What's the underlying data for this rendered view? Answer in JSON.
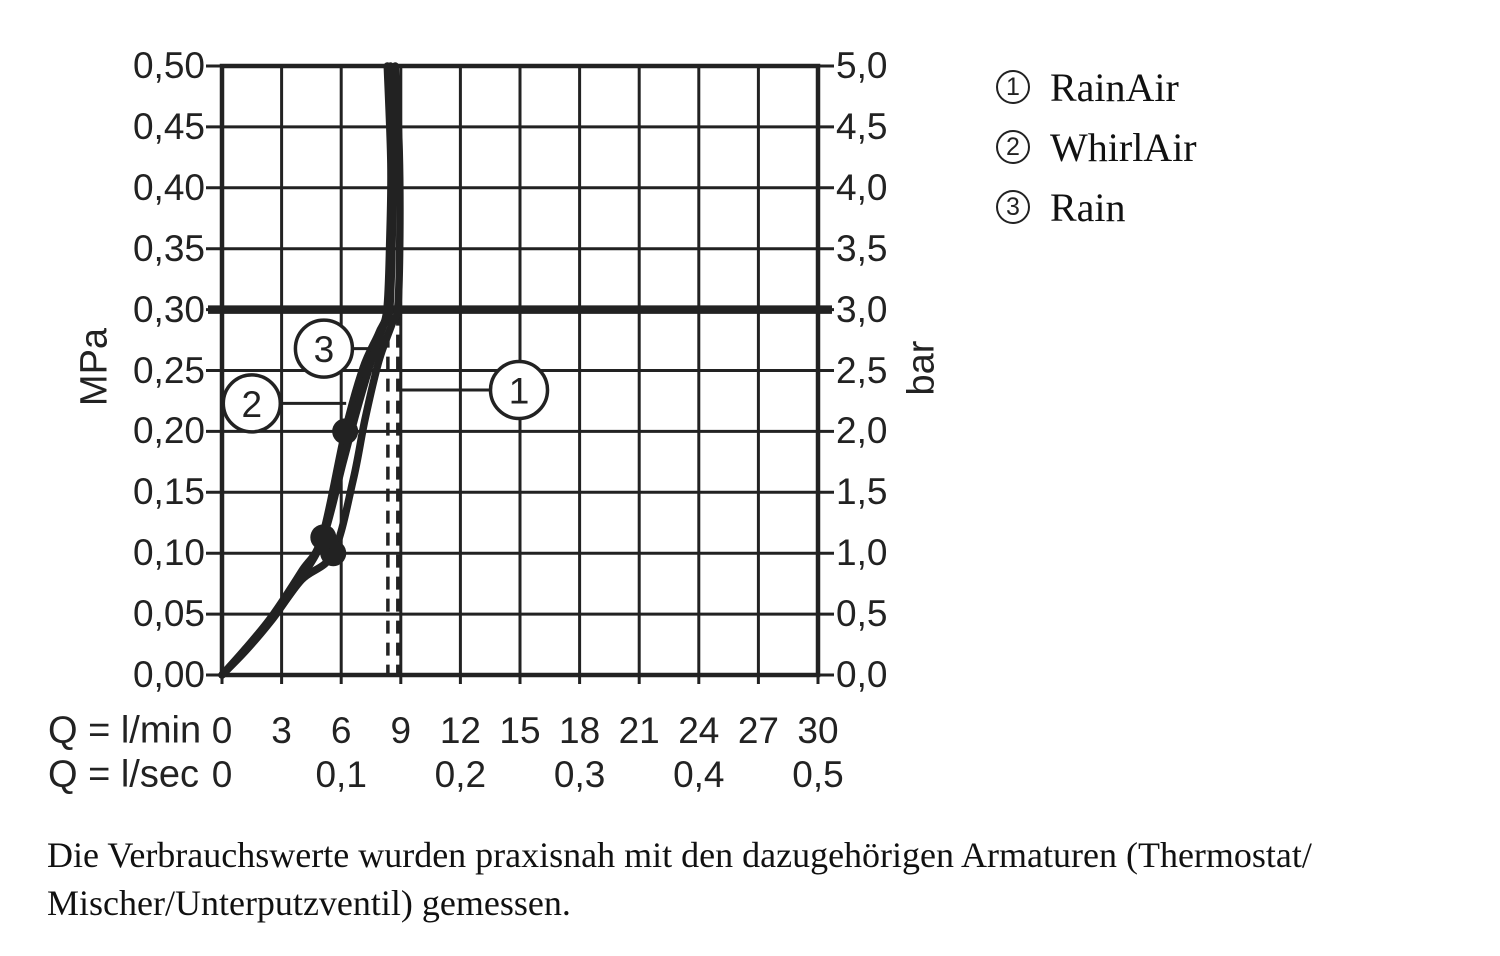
{
  "page": {
    "background": "#ffffff",
    "ink": "#222222"
  },
  "chart_data": {
    "type": "line",
    "grid": true,
    "x_axis": {
      "label_primary": "Q = l/min",
      "ticks_primary": [
        "0",
        "3",
        "6",
        "9",
        "12",
        "15",
        "18",
        "21",
        "24",
        "27",
        "30"
      ],
      "label_secondary": "Q = l/sec",
      "ticks_secondary": [
        {
          "text": "0",
          "at_lmin": 0
        },
        {
          "text": "0,1",
          "at_lmin": 6
        },
        {
          "text": "0,2",
          "at_lmin": 12
        },
        {
          "text": "0,3",
          "at_lmin": 18
        },
        {
          "text": "0,4",
          "at_lmin": 24
        },
        {
          "text": "0,5",
          "at_lmin": 30
        }
      ],
      "min": 0,
      "max": 30,
      "step": 3
    },
    "y_axis_left": {
      "label": "MPa",
      "ticks": [
        "0,00",
        "0,05",
        "0,10",
        "0,15",
        "0,20",
        "0,25",
        "0,30",
        "0,35",
        "0,40",
        "0,45",
        "0,50"
      ],
      "min": 0,
      "max": 0.5,
      "step": 0.05
    },
    "y_axis_right": {
      "label": "bar",
      "ticks": [
        "0,0",
        "0,5",
        "1,0",
        "1,5",
        "2,0",
        "2,5",
        "3,0",
        "3,5",
        "4,0",
        "4,5",
        "5,0"
      ],
      "min": 0,
      "max": 5,
      "step": 0.5
    },
    "reference_line": {
      "mpa": 0.3,
      "bar": 3.0
    },
    "dashed_guides_lmin": [
      8.35,
      8.85
    ],
    "series": [
      {
        "id": "1",
        "name": "RainAir",
        "points": [
          [
            0,
            0
          ],
          [
            1.2,
            0.02
          ],
          [
            2.5,
            0.045
          ],
          [
            4,
            0.078
          ],
          [
            5.6,
            0.1
          ],
          [
            6.6,
            0.16
          ],
          [
            7.2,
            0.21
          ],
          [
            7.9,
            0.258
          ],
          [
            8.6,
            0.29
          ],
          [
            8.85,
            0.302
          ],
          [
            8.95,
            0.36
          ],
          [
            8.92,
            0.43
          ],
          [
            8.72,
            0.5
          ]
        ],
        "dot": [
          5.6,
          0.1
        ]
      },
      {
        "id": "2",
        "name": "WhirlAir",
        "points": [
          [
            0,
            0
          ],
          [
            1.2,
            0.022
          ],
          [
            2.5,
            0.048
          ],
          [
            4,
            0.085
          ],
          [
            5.05,
            0.114
          ],
          [
            6.2,
            0.2
          ],
          [
            7.1,
            0.252
          ],
          [
            7.9,
            0.281
          ],
          [
            8.3,
            0.3
          ],
          [
            8.45,
            0.36
          ],
          [
            8.5,
            0.42
          ],
          [
            8.32,
            0.5
          ]
        ],
        "dot": [
          6.2,
          0.2
        ]
      },
      {
        "id": "3",
        "name": "Rain",
        "points": [
          [
            0,
            0
          ],
          [
            1.2,
            0.021
          ],
          [
            2.5,
            0.046
          ],
          [
            4,
            0.08
          ],
          [
            5.1,
            0.113
          ],
          [
            6.1,
            0.175
          ],
          [
            6.8,
            0.218
          ],
          [
            7.6,
            0.262
          ],
          [
            8.2,
            0.29
          ],
          [
            8.45,
            0.302
          ],
          [
            8.58,
            0.37
          ],
          [
            8.6,
            0.44
          ],
          [
            8.48,
            0.5
          ]
        ],
        "dot": [
          5.1,
          0.113
        ]
      }
    ],
    "callouts": [
      {
        "number": "1",
        "series": "RainAir",
        "center": [
          14.95,
          0.234
        ],
        "leader_end": [
          8.82,
          0.234
        ]
      },
      {
        "number": "2",
        "series": "WhirlAir",
        "center": [
          1.5,
          0.223
        ],
        "leader_end": [
          6.25,
          0.223
        ]
      },
      {
        "number": "3",
        "series": "Rain",
        "center": [
          5.13,
          0.268
        ],
        "leader_end": [
          8.05,
          0.268
        ]
      }
    ]
  },
  "legend": {
    "items": [
      {
        "number": "1",
        "label": "RainAir"
      },
      {
        "number": "2",
        "label": "WhirlAir"
      },
      {
        "number": "3",
        "label": "Rain"
      }
    ]
  },
  "caption": {
    "line1": "Die Verbrauchswerte wurden praxisnah mit den dazugehörigen Armaturen (Thermostat/",
    "line2": "Mischer/Unterputzventil) gemessen."
  }
}
